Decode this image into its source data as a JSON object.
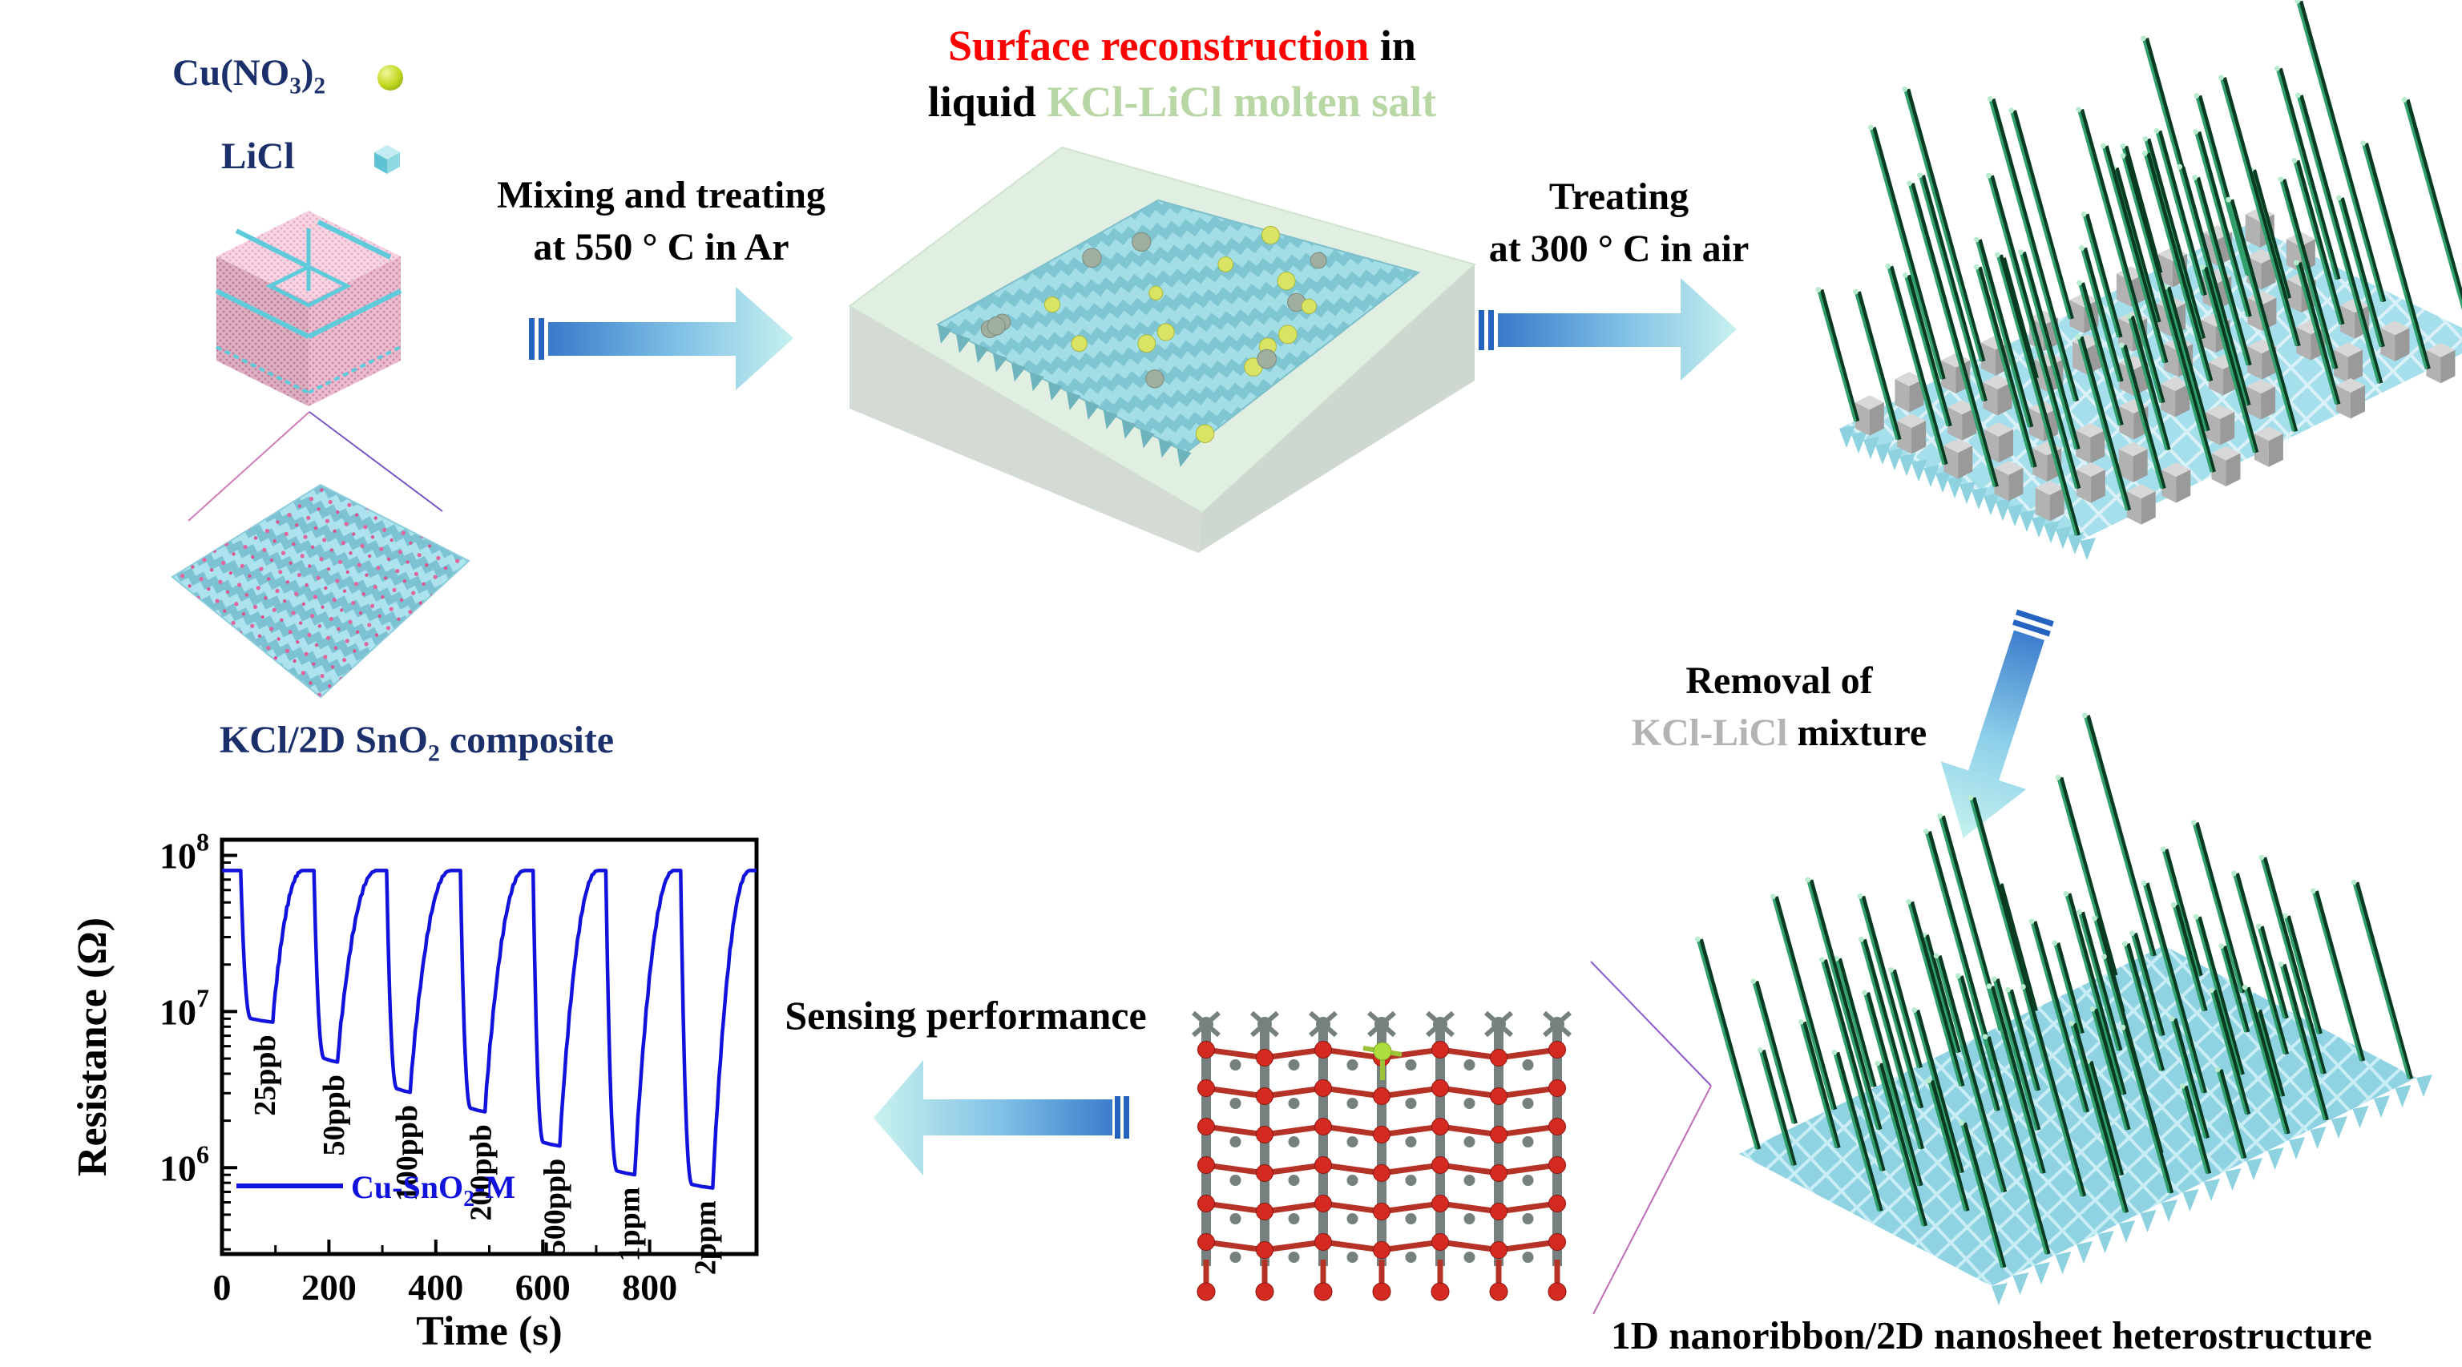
{
  "palette": {
    "navy_text": "#1b2f6b",
    "red_title": "#fe0000",
    "molten_green_text": "#b9d6a5",
    "gray_text": "#b3b3b3",
    "curve_blue": "#1212dd",
    "arrow_dark_blue": "#2e6ec6",
    "arrow_pale_cyan": "#c9f2ee",
    "needle_green": "#31a06c",
    "needle_tip": "#b9ebcf",
    "sheet_cyan": "#9fdde8",
    "cube_gray": "#c2c2c2",
    "kcl_pink": "#f2bcd2",
    "cu_sphere_yellow": "#c3d821",
    "atom_red": "#d42a22",
    "atom_gray": "#76807f",
    "atom_cu_yellow": "#aede3e"
  },
  "reagents": {
    "cu_pre": "Cu(NO",
    "cu_sub1": "3",
    "cu_mid": ")",
    "cu_sub2": "2",
    "licl": "LiCl"
  },
  "composite_label": {
    "pre": "KCl/2D SnO",
    "sub": "2",
    "post": " composite"
  },
  "step1": {
    "line1": "Mixing and treating",
    "line2": "at 550 ° C in Ar"
  },
  "title": {
    "l1_red": "Surface reconstruction",
    "l1_black": " in",
    "l2_black": "liquid ",
    "l2_green": "KCl-LiCl molten salt"
  },
  "step2": {
    "line1": "Treating",
    "line2": "at 300 ° C in air"
  },
  "removal": {
    "line1": "Removal of",
    "line2_gray": "KCl-LiCl",
    "line2_black": " mixture"
  },
  "hetero_label": "1D nanoribbon/2D nanosheet heterostructure",
  "sensing_label": "Sensing performance",
  "chart_data": {
    "type": "line",
    "xlabel": "Time (s)",
    "ylabel": "Resistance (Ω)",
    "xlim": [
      0,
      1000
    ],
    "x_major_ticks": [
      0,
      200,
      400,
      600,
      800
    ],
    "x_minor_step": 100,
    "y_scale": "log",
    "ylim": [
      280000,
      126000000
    ],
    "y_major_ticks": [
      {
        "base": "10",
        "exp": "8",
        "value": 100000000
      },
      {
        "base": "10",
        "exp": "7",
        "value": 10000000
      },
      {
        "base": "10",
        "exp": "6",
        "value": 1000000
      }
    ],
    "baseline_resistance": 80000000,
    "grid": false,
    "legend_position": "lower-left",
    "series": [
      {
        "name": "Cu-SnO2-M",
        "label_parts": {
          "pre": "Cu-SnO",
          "sub": "2",
          "post": "-M"
        },
        "color": "#1212dd"
      }
    ],
    "cycles": [
      {
        "label": "25ppb",
        "t_on": 35,
        "t_bottom": 55,
        "t_release": 95,
        "t_recovered": 152,
        "r_bottom": 9000000
      },
      {
        "label": "50ppb",
        "t_on": 172,
        "t_bottom": 192,
        "t_release": 216,
        "t_recovered": 290,
        "r_bottom": 5000000
      },
      {
        "label": "100ppb",
        "t_on": 308,
        "t_bottom": 328,
        "t_release": 352,
        "t_recovered": 428,
        "r_bottom": 3200000
      },
      {
        "label": "200ppb",
        "t_on": 446,
        "t_bottom": 466,
        "t_release": 492,
        "t_recovered": 566,
        "r_bottom": 2400000
      },
      {
        "label": "500ppb",
        "t_on": 582,
        "t_bottom": 602,
        "t_release": 632,
        "t_recovered": 704,
        "r_bottom": 1450000
      },
      {
        "label": "1ppm",
        "t_on": 718,
        "t_bottom": 740,
        "t_release": 772,
        "t_recovered": 846,
        "r_bottom": 950000
      },
      {
        "label": "2ppm",
        "t_on": 858,
        "t_bottom": 880,
        "t_release": 918,
        "t_recovered": 988,
        "r_bottom": 780000
      }
    ]
  }
}
